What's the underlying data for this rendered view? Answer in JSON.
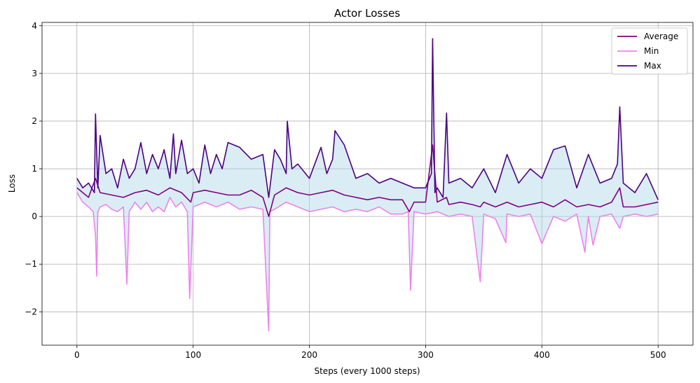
{
  "chart_data": {
    "type": "line",
    "title": "Actor Losses",
    "xlabel": "Steps (every 1000 steps)",
    "ylabel": "Loss",
    "xlim": [
      -30,
      530
    ],
    "ylim": [
      -2.7,
      4.07
    ],
    "xticks": [
      0,
      100,
      200,
      300,
      400,
      500
    ],
    "yticks": [
      -2,
      -1,
      0,
      1,
      2,
      3,
      4
    ],
    "grid": true,
    "legend_position": "top-right",
    "fill_between": {
      "lower": "Min",
      "upper": "Max",
      "color": "#add8e6"
    },
    "series": [
      {
        "name": "Average",
        "color": "#800080",
        "x": [
          0,
          10,
          16,
          20,
          30,
          40,
          50,
          60,
          70,
          80,
          90,
          98,
          100,
          110,
          120,
          130,
          140,
          150,
          160,
          165,
          170,
          180,
          190,
          200,
          210,
          220,
          230,
          240,
          250,
          260,
          270,
          280,
          286,
          290,
          300,
          306,
          310,
          318,
          320,
          330,
          340,
          347,
          350,
          360,
          370,
          380,
          390,
          400,
          410,
          420,
          430,
          440,
          450,
          460,
          467,
          470,
          480,
          490,
          500
        ],
        "values": [
          0.6,
          0.4,
          0.8,
          0.5,
          0.45,
          0.4,
          0.5,
          0.55,
          0.45,
          0.6,
          0.5,
          0.3,
          0.5,
          0.55,
          0.5,
          0.45,
          0.45,
          0.55,
          0.4,
          0.0,
          0.45,
          0.6,
          0.5,
          0.45,
          0.5,
          0.55,
          0.45,
          0.4,
          0.35,
          0.4,
          0.35,
          0.35,
          0.1,
          0.3,
          0.3,
          1.5,
          0.3,
          0.4,
          0.25,
          0.3,
          0.25,
          0.2,
          0.3,
          0.2,
          0.3,
          0.2,
          0.25,
          0.3,
          0.2,
          0.35,
          0.2,
          0.25,
          0.2,
          0.3,
          0.6,
          0.2,
          0.2,
          0.25,
          0.3
        ]
      },
      {
        "name": "Min",
        "color": "#ee82ee",
        "x": [
          0,
          5,
          10,
          14,
          16,
          17,
          18,
          20,
          25,
          30,
          35,
          40,
          43,
          45,
          50,
          55,
          60,
          65,
          70,
          75,
          80,
          85,
          90,
          95,
          97,
          100,
          105,
          110,
          120,
          130,
          140,
          150,
          160,
          165,
          166,
          170,
          180,
          190,
          200,
          210,
          220,
          230,
          240,
          250,
          260,
          270,
          280,
          285,
          287,
          290,
          300,
          310,
          320,
          330,
          340,
          347,
          350,
          360,
          369,
          370,
          380,
          390,
          400,
          410,
          420,
          430,
          437,
          440,
          444,
          450,
          460,
          467,
          470,
          480,
          490,
          500
        ],
        "values": [
          0.5,
          0.3,
          0.2,
          0.1,
          -0.4,
          -1.25,
          0.1,
          0.2,
          0.25,
          0.15,
          0.1,
          0.2,
          -1.42,
          0.1,
          0.3,
          0.15,
          0.3,
          0.1,
          0.2,
          0.1,
          0.4,
          0.2,
          0.3,
          0.1,
          -1.72,
          0.2,
          0.25,
          0.3,
          0.2,
          0.3,
          0.15,
          0.2,
          0.15,
          -2.4,
          0.1,
          0.15,
          0.3,
          0.2,
          0.1,
          0.15,
          0.2,
          0.1,
          0.15,
          0.1,
          0.2,
          0.05,
          0.05,
          0.1,
          -1.55,
          0.1,
          0.05,
          0.1,
          0.0,
          0.05,
          0.0,
          -1.37,
          0.05,
          -0.05,
          -0.55,
          0.05,
          0.0,
          0.05,
          -0.57,
          0.0,
          -0.1,
          0.05,
          -0.75,
          0.0,
          -0.6,
          0.0,
          0.05,
          -0.25,
          0.0,
          0.05,
          0.0,
          0.05
        ]
      },
      {
        "name": "Max",
        "color": "#4b0082",
        "x": [
          0,
          5,
          10,
          15,
          16,
          18,
          20,
          25,
          30,
          35,
          40,
          45,
          50,
          55,
          60,
          65,
          70,
          75,
          80,
          83,
          85,
          90,
          95,
          100,
          105,
          110,
          115,
          120,
          125,
          130,
          140,
          150,
          160,
          165,
          170,
          175,
          180,
          181,
          185,
          190,
          200,
          210,
          215,
          220,
          222,
          230,
          240,
          250,
          260,
          270,
          280,
          290,
          300,
          305,
          306,
          308,
          310,
          315,
          318,
          320,
          330,
          340,
          350,
          360,
          370,
          380,
          390,
          400,
          410,
          420,
          430,
          440,
          450,
          460,
          465,
          467,
          470,
          480,
          490,
          500
        ],
        "values": [
          0.8,
          0.6,
          0.7,
          0.5,
          2.15,
          0.6,
          1.7,
          0.9,
          1.0,
          0.6,
          1.2,
          0.8,
          1.0,
          1.55,
          0.9,
          1.3,
          1.0,
          1.4,
          0.8,
          1.73,
          0.9,
          1.6,
          0.9,
          1.0,
          0.7,
          1.5,
          0.9,
          1.3,
          1.0,
          1.55,
          1.45,
          1.2,
          1.3,
          0.4,
          1.4,
          1.2,
          0.9,
          2.0,
          1.0,
          1.1,
          0.8,
          1.45,
          0.9,
          1.2,
          1.8,
          1.5,
          0.8,
          0.9,
          0.7,
          0.8,
          0.7,
          0.6,
          0.6,
          0.9,
          3.73,
          0.5,
          0.6,
          0.4,
          2.17,
          0.7,
          0.8,
          0.6,
          1.0,
          0.5,
          1.3,
          0.7,
          1.0,
          0.8,
          1.4,
          1.48,
          0.6,
          1.3,
          0.7,
          0.8,
          1.1,
          2.3,
          0.7,
          0.5,
          0.9,
          0.35
        ]
      }
    ]
  }
}
